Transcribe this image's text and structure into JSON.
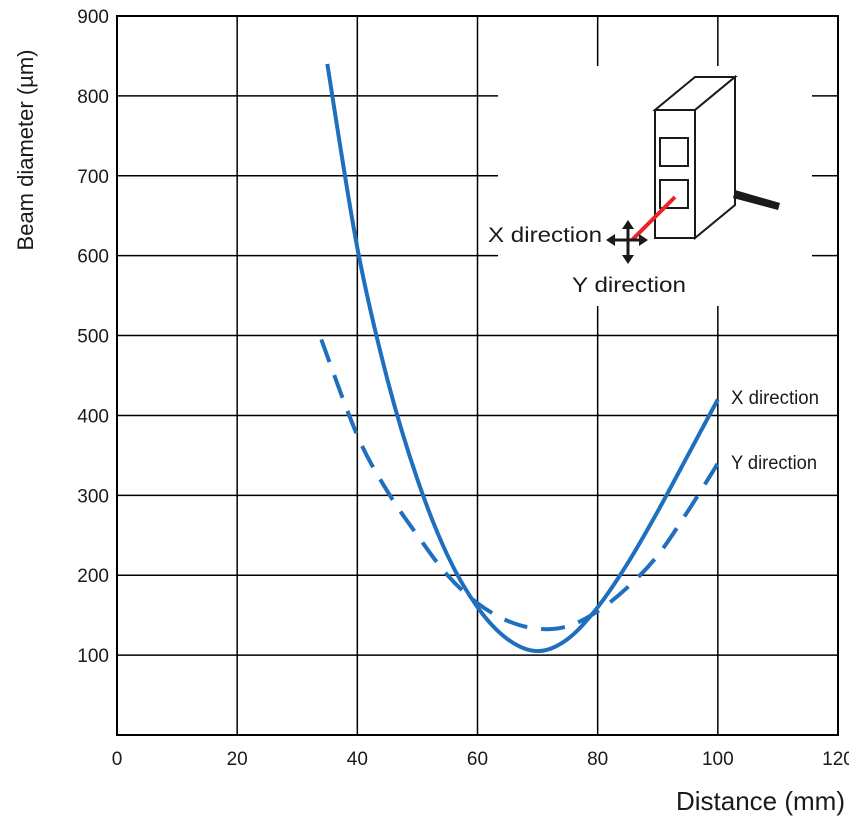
{
  "chart_data": {
    "type": "line",
    "xlabel": "Distance (mm)",
    "ylabel": "Beam diameter (µm)",
    "xlim": [
      0,
      120
    ],
    "ylim": [
      0,
      900
    ],
    "x_ticks": [
      "0",
      "20",
      "40",
      "60",
      "80",
      "100",
      "120"
    ],
    "y_ticks": [
      "100",
      "200",
      "300",
      "400",
      "500",
      "600",
      "700",
      "800",
      "900"
    ],
    "grid": true,
    "series": [
      {
        "name": "X direction",
        "style": "solid",
        "color": "#1f6fbf",
        "x": [
          35,
          40,
          45,
          50,
          55,
          60,
          65,
          70,
          75,
          80,
          85,
          90,
          95,
          100
        ],
        "y": [
          840,
          610,
          445,
          320,
          225,
          160,
          120,
          105,
          120,
          160,
          215,
          280,
          350,
          420
        ]
      },
      {
        "name": "Y direction",
        "style": "dashed",
        "color": "#1f6fbf",
        "x": [
          34,
          40,
          45,
          50,
          55,
          60,
          65,
          70,
          75,
          80,
          85,
          90,
          95,
          100
        ],
        "y": [
          495,
          375,
          305,
          250,
          200,
          165,
          143,
          133,
          136,
          155,
          185,
          225,
          280,
          340
        ]
      }
    ],
    "inset": {
      "x_label": "X direction",
      "y_label": "Y direction"
    },
    "colors": {
      "series": "#1f6fbf",
      "beam": "#e8262a",
      "grid": "#000000"
    }
  }
}
